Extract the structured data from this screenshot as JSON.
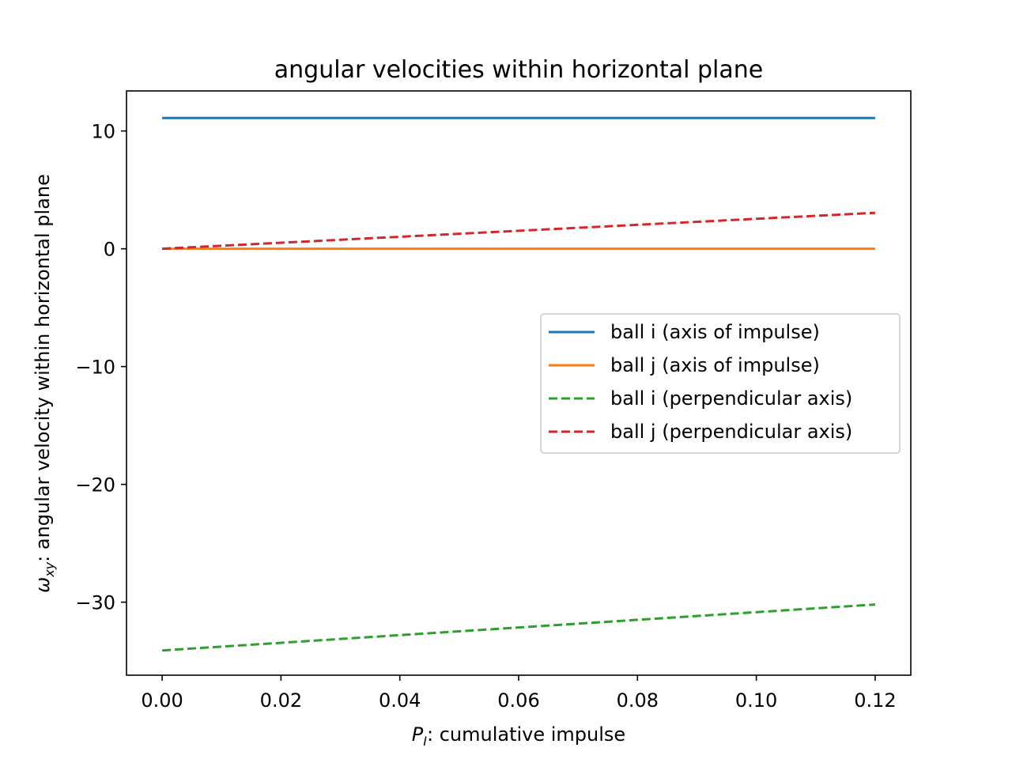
{
  "chart_data": {
    "type": "line",
    "title": "angular velocities within horizontal plane",
    "xlabel": {
      "symbol": "P",
      "subscript": "I",
      "text": ": cumulative impulse"
    },
    "ylabel": {
      "symbol": "ω",
      "subscript": "xy",
      "text": ": angular velocity within horizontal plane"
    },
    "xlim": [
      -0.006,
      0.126
    ],
    "ylim": [
      -36.2,
      13.4
    ],
    "x_ticks": [
      0.0,
      0.02,
      0.04,
      0.06,
      0.08,
      0.1,
      0.12
    ],
    "x_tick_labels": [
      "0.00",
      "0.02",
      "0.04",
      "0.06",
      "0.08",
      "0.10",
      "0.12"
    ],
    "y_ticks": [
      10,
      0,
      -10,
      -20,
      -30
    ],
    "y_tick_labels": [
      "10",
      "0",
      "−10",
      "−20",
      "−30"
    ],
    "grid": false,
    "legend_position": "center-right",
    "series": [
      {
        "name": "ball i (axis of impulse)",
        "color": "#1f77b4",
        "style": "solid",
        "x": [
          0.0,
          0.12
        ],
        "y": [
          11.1,
          11.1
        ]
      },
      {
        "name": "ball j (axis of impulse)",
        "color": "#ff7f0e",
        "style": "solid",
        "x": [
          0.0,
          0.12
        ],
        "y": [
          0.0,
          0.0
        ]
      },
      {
        "name": "ball i (perpendicular axis)",
        "color": "#2ca02c",
        "style": "dashed",
        "x": [
          0.0,
          0.12
        ],
        "y": [
          -34.1,
          -30.2
        ]
      },
      {
        "name": "ball j (perpendicular axis)",
        "color": "#d62728",
        "style": "dashed",
        "x": [
          0.0,
          0.12
        ],
        "y": [
          0.0,
          3.05
        ]
      }
    ]
  }
}
